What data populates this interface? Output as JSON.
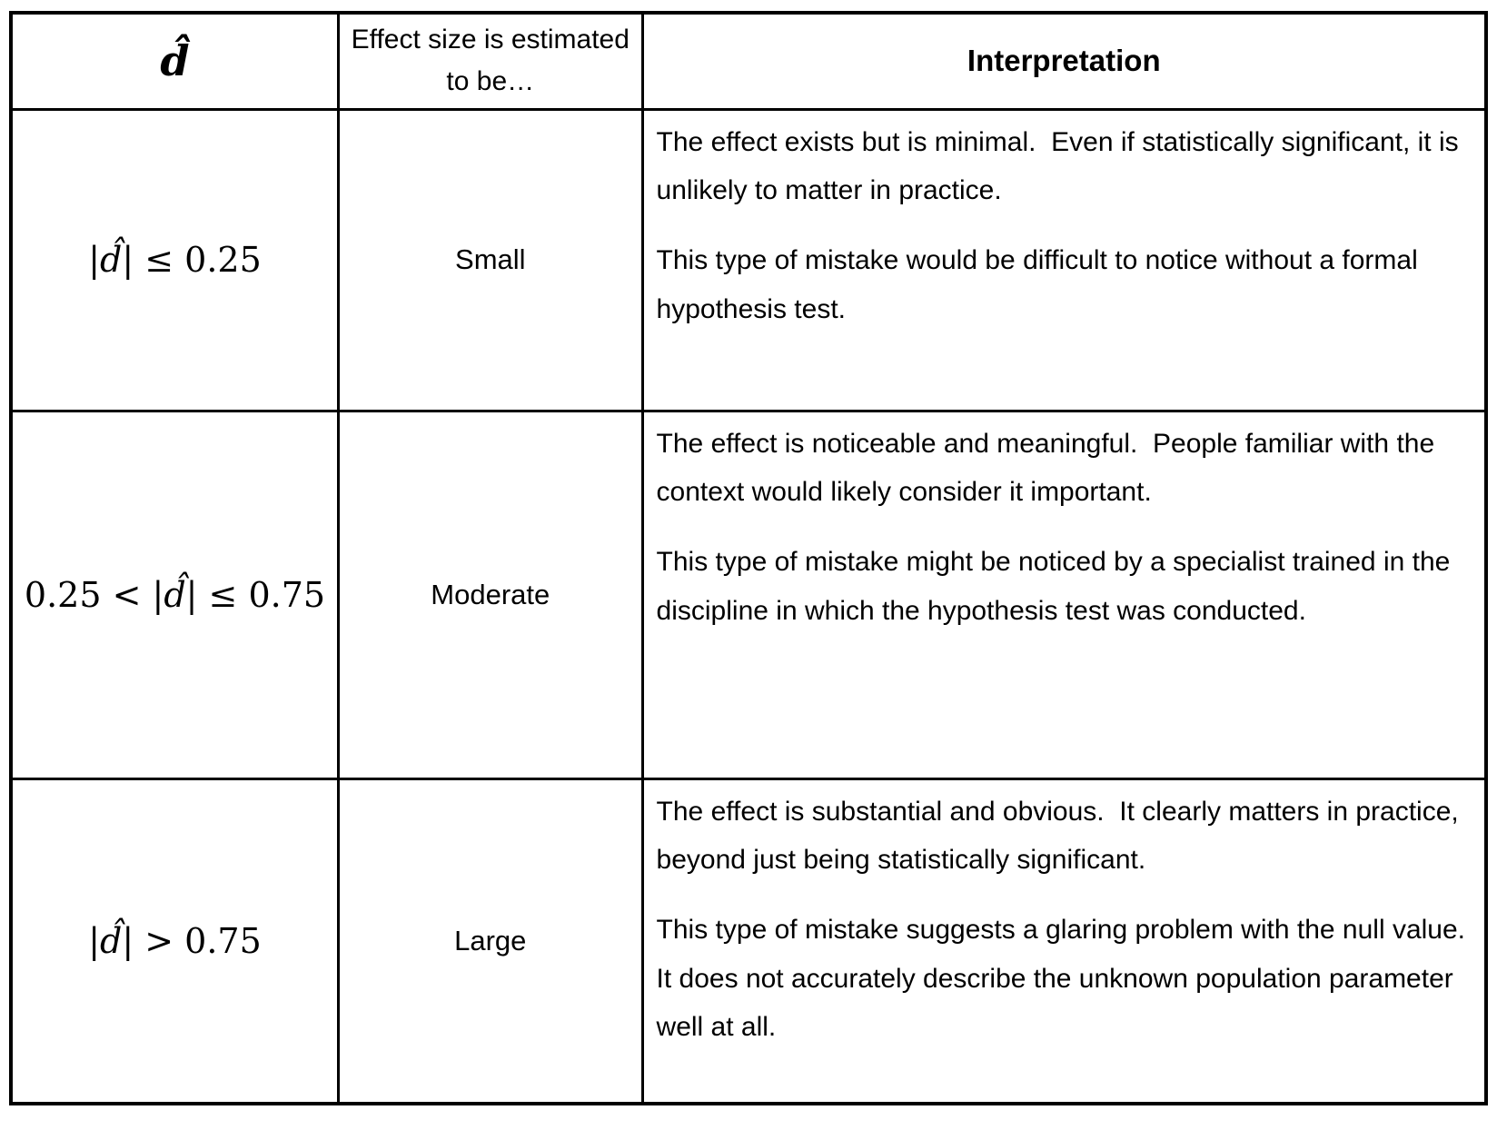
{
  "table": {
    "header": {
      "d_symbol": "d̂",
      "col2": "Effect size is estimated to be…",
      "col3": "Interpretation"
    },
    "rows": [
      {
        "formula": {
          "before": "|",
          "d": "d̂",
          "after": "| ≤ 0.25"
        },
        "size": "Small",
        "para1": "The effect exists but is minimal.  Even if statistically significant, it is unlikely to matter in practice.",
        "para2": "This type of mistake would be difficult to notice without a formal hypothesis test."
      },
      {
        "formula": {
          "before": "0.25 < |",
          "d": "d̂",
          "after": "| ≤ 0.75"
        },
        "size": "Moderate",
        "para1": "The effect is noticeable and meaningful.  People familiar with the context would likely consider it important.",
        "para2": "This type of mistake might be noticed by a specialist trained in the discipline in which the hypothesis test was conducted."
      },
      {
        "formula": {
          "before": "|",
          "d": "d̂",
          "after": "| > 0.75"
        },
        "size": "Large",
        "para1": "The effect is substantial and obvious.  It clearly matters in practice, beyond just being statistically significant.",
        "para2": "This type of mistake suggests a glaring problem with the null value. It does not accurately describe the unknown population parameter well at all."
      }
    ]
  },
  "colors": {
    "border": "#000000",
    "text": "#000000",
    "background": "#ffffff"
  }
}
